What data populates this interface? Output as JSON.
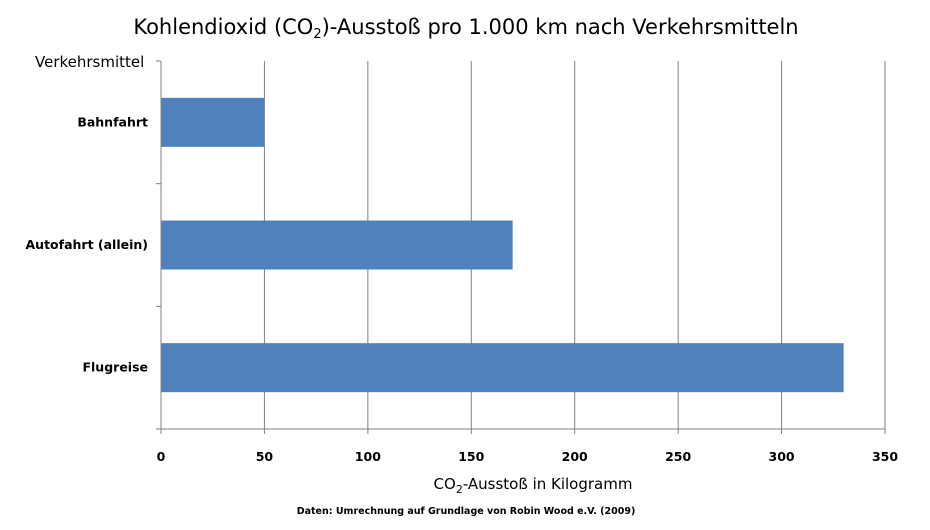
{
  "chart_data": {
    "type": "bar",
    "orientation": "horizontal",
    "title_parts": [
      "Kohlendioxid (CO",
      "2",
      ")-Ausstoß pro 1.000 km nach Verkehrsmitteln"
    ],
    "y_axis_title": "Verkehrsmittel",
    "x_axis_title_parts": [
      "CO",
      "2",
      "-Ausstoß in Kilogramm"
    ],
    "categories": [
      "Bahnfahrt",
      "Autofahrt (allein)",
      "Flugreise"
    ],
    "values": [
      50,
      170,
      330
    ],
    "xlim": [
      0,
      350
    ],
    "x_ticks": [
      "0",
      "50",
      "100",
      "150",
      "200",
      "250",
      "300",
      "350"
    ],
    "grid": "vertical",
    "source": "Daten: Umrechnung auf Grundlage von Robin Wood e.V. (2009)",
    "bar_color": "#4F81BD",
    "grid_color": "#808080"
  }
}
